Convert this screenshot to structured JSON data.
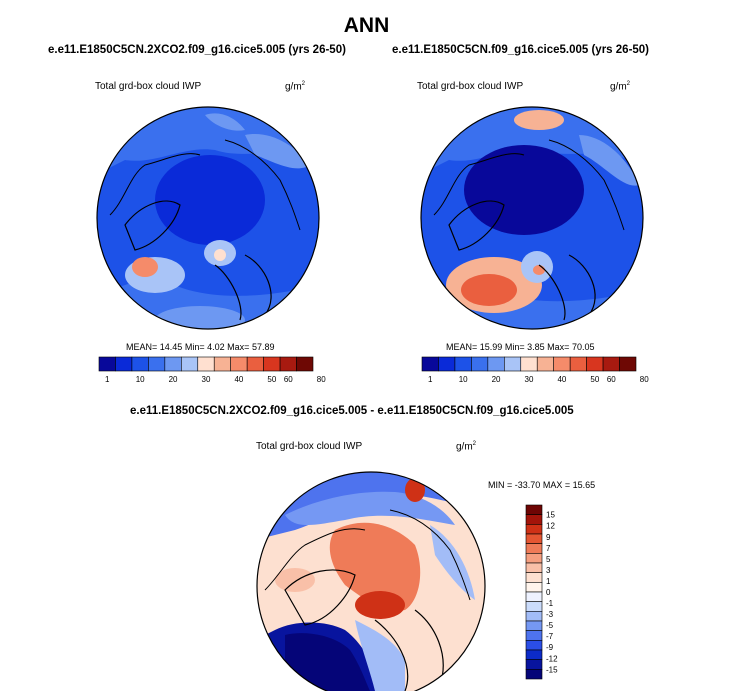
{
  "title": "ANN",
  "colors": {
    "land_outline": "#000000",
    "ocean_border": "#000000",
    "abs_palette": [
      "#08089a",
      "#0a2ad8",
      "#1d52e8",
      "#3a70ee",
      "#6d98f2",
      "#a9c4f7",
      "#ffe0d0",
      "#f7b294",
      "#f58b6a",
      "#ea5f3f",
      "#d8361f",
      "#a81a10",
      "#6e0804"
    ],
    "diff_palette": [
      "#050578",
      "#08149e",
      "#0c2bc8",
      "#2b4ee6",
      "#4e73ee",
      "#7598f3",
      "#a2bcf7",
      "#cbdcfb",
      "#eef2ff",
      "#fff4ec",
      "#fde0d0",
      "#f9c0a8",
      "#f59f80",
      "#ef7b58",
      "#e55632",
      "#cf3116",
      "#a3140a",
      "#6e0504"
    ]
  },
  "panels": [
    {
      "case": "e.e11.E1850C5CN.2XCO2.f09_g16.cice5.005 (yrs 26-50)",
      "variable": "Total grd-box cloud IWP",
      "units_base": "g/m",
      "units_exp": "2",
      "mean_label": "MEAN=",
      "mean": "14.45",
      "min_label": "Min=",
      "min": "4.02",
      "max_label": "Max=",
      "max": "57.89"
    },
    {
      "case": "e.e11.E1850C5CN.f09_g16.cice5.005 (yrs 26-50)",
      "variable": "Total grd-box cloud IWP",
      "units_base": "g/m",
      "units_exp": "2",
      "mean_label": "MEAN=",
      "mean": "15.99",
      "min_label": "Min=",
      "min": "3.85",
      "max_label": "Max=",
      "max": "70.05"
    }
  ],
  "diff": {
    "case": "e.e11.E1850C5CN.2XCO2.f09_g16.cice5.005 - e.e11.E1850C5CN.f09_g16.cice5.005",
    "variable": "Total grd-box cloud IWP",
    "units_base": "g/m",
    "units_exp": "2",
    "min_label": "MIN =",
    "min": "-33.70",
    "max_label": "MAX =",
    "max": "15.65"
  },
  "chart_data": [
    {
      "type": "polar-stereographic contour map (field)",
      "title": "e.e11.E1850C5CN.2XCO2.f09_g16.cice5.005 (yrs 26-50)",
      "variable": "Total grd-box cloud IWP",
      "units": "g/m2",
      "projection": "North Polar Stereographic",
      "contour_levels": [
        1,
        5,
        10,
        15,
        20,
        25,
        30,
        35,
        40,
        45,
        50,
        60,
        70,
        80
      ],
      "colorbar_labels": [
        "1",
        "10",
        "20",
        "30",
        "40",
        "50",
        "60",
        "80"
      ],
      "mean": 14.45,
      "min": 4.02,
      "max": 57.89
    },
    {
      "type": "polar-stereographic contour map (field)",
      "title": "e.e11.E1850C5CN.f09_g16.cice5.005 (yrs 26-50)",
      "variable": "Total grd-box cloud IWP",
      "units": "g/m2",
      "projection": "North Polar Stereographic",
      "contour_levels": [
        1,
        5,
        10,
        15,
        20,
        25,
        30,
        35,
        40,
        45,
        50,
        60,
        70,
        80
      ],
      "colorbar_labels": [
        "1",
        "10",
        "20",
        "30",
        "40",
        "50",
        "60",
        "80"
      ],
      "mean": 15.99,
      "min": 3.85,
      "max": 70.05
    },
    {
      "type": "polar-stereographic contour map (difference)",
      "title": "e.e11.E1850C5CN.2XCO2.f09_g16.cice5.005 - e.e11.E1850C5CN.f09_g16.cice5.005",
      "variable": "Total grd-box cloud IWP",
      "units": "g/m2",
      "projection": "North Polar Stereographic",
      "contour_levels": [
        -15,
        -12,
        -9,
        -7,
        -5,
        -3,
        -1,
        0,
        1,
        3,
        5,
        7,
        9,
        12,
        15
      ],
      "colorbar_labels": [
        "15",
        "12",
        "9",
        "7",
        "5",
        "3",
        "1",
        "0",
        "-1",
        "-3",
        "-5",
        "-7",
        "-9",
        "-12",
        "-15"
      ],
      "min": -33.7,
      "max": 15.65
    }
  ]
}
